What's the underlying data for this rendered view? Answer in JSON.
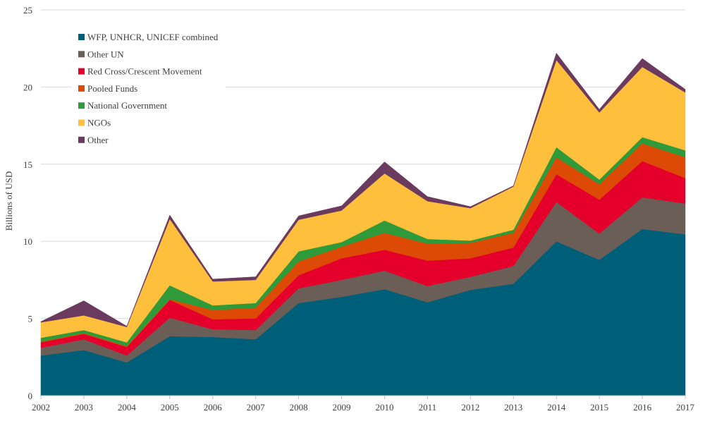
{
  "chart_data": {
    "type": "area",
    "stacked": true,
    "title": "",
    "xlabel": "",
    "ylabel": "Billions of USD",
    "ylim": [
      0,
      25
    ],
    "yticks": [
      0,
      5,
      10,
      15,
      20,
      25
    ],
    "grid": "horizontal",
    "legend_position": "top-left",
    "x": [
      "2002",
      "2003",
      "2004",
      "2005",
      "2006",
      "2007",
      "2008",
      "2009",
      "2010",
      "2011",
      "2012",
      "2013",
      "2014",
      "2015",
      "2016",
      "2017"
    ],
    "series": [
      {
        "name": "WFP, UNHCR, UNICEF combined",
        "color": "#005f78",
        "values": [
          2.6,
          2.95,
          2.15,
          3.85,
          3.8,
          3.65,
          6.0,
          6.4,
          6.9,
          6.05,
          6.85,
          7.25,
          10.0,
          8.8,
          10.8,
          10.45
        ]
      },
      {
        "name": "Other UN",
        "color": "#6b5e57",
        "values": [
          0.5,
          0.7,
          0.45,
          1.2,
          0.5,
          0.6,
          0.95,
          1.1,
          1.2,
          1.05,
          0.85,
          1.15,
          2.55,
          1.7,
          2.05,
          2.0
        ]
      },
      {
        "name": "Red Cross/Crescent Movement",
        "color": "#e4002b",
        "values": [
          0.35,
          0.35,
          0.55,
          1.15,
          0.65,
          0.75,
          0.85,
          1.4,
          1.35,
          1.65,
          1.2,
          1.2,
          1.8,
          2.2,
          2.35,
          1.65
        ]
      },
      {
        "name": "Pooled Funds",
        "color": "#dd4a06",
        "values": [
          0.05,
          0.05,
          0.05,
          0.05,
          0.6,
          0.7,
          0.9,
          0.75,
          1.1,
          1.1,
          1.0,
          0.95,
          1.1,
          1.0,
          1.15,
          1.35
        ]
      },
      {
        "name": "National Government",
        "color": "#2e9a3a",
        "values": [
          0.25,
          0.2,
          0.25,
          0.9,
          0.3,
          0.3,
          0.65,
          0.3,
          0.8,
          0.3,
          0.15,
          0.2,
          0.65,
          0.3,
          0.4,
          0.45
        ]
      },
      {
        "name": "NGOs",
        "color": "#fdbf3c",
        "values": [
          1.0,
          0.95,
          1.0,
          4.3,
          1.55,
          1.5,
          2.05,
          2.05,
          3.05,
          2.45,
          2.1,
          2.8,
          5.65,
          4.35,
          4.55,
          3.75
        ]
      },
      {
        "name": "Other",
        "color": "#6a3b5e",
        "values": [
          0.05,
          0.95,
          0.05,
          0.25,
          0.15,
          0.2,
          0.25,
          0.3,
          0.75,
          0.3,
          0.1,
          0.05,
          0.45,
          0.2,
          0.55,
          0.2
        ]
      }
    ]
  }
}
